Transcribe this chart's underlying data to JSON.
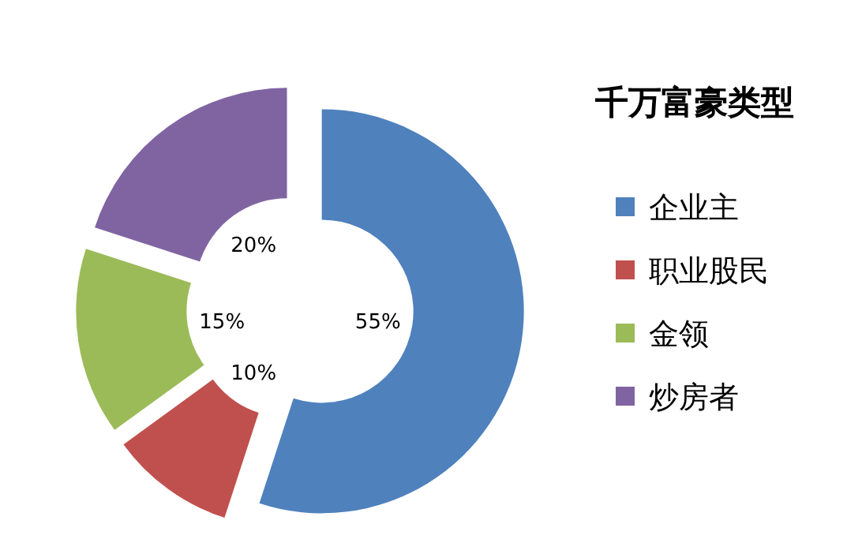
{
  "chart_data": {
    "type": "donut",
    "legend_title": "千万富豪类型",
    "categories": [
      "企业主",
      "职业股民",
      "金领",
      "炒房者"
    ],
    "values": [
      55,
      10,
      15,
      20
    ],
    "colors": [
      "#4f81bd",
      "#c0504d",
      "#9bbb59",
      "#8064a2"
    ],
    "value_labels": [
      "55%",
      "10%",
      "15%",
      "20%"
    ],
    "legend": "right"
  }
}
